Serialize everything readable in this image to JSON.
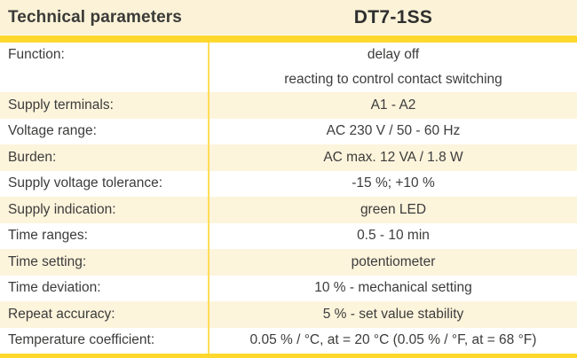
{
  "header": {
    "title": "Technical parameters",
    "model": "DT7-1SS"
  },
  "colors": {
    "accent_yellow": "#FFD82E",
    "header_cream": "#FBF2D7",
    "row_cream": "#FDF4DC",
    "divider_yellow": "#FFDD55",
    "text": "#3C3C3B"
  },
  "table": {
    "rows": [
      {
        "label": "Function:",
        "value": "delay off",
        "value2": "reacting to control contact switching"
      },
      {
        "label": "Supply terminals:",
        "value": "A1 - A2"
      },
      {
        "label": "Voltage range:",
        "value": "AC 230 V / 50 - 60 Hz"
      },
      {
        "label": "Burden:",
        "value": "AC max. 12 VA / 1.8 W"
      },
      {
        "label": "Supply voltage tolerance:",
        "value": "-15 %; +10 %"
      },
      {
        "label": "Supply indication:",
        "value": "green LED"
      },
      {
        "label": "Time ranges:",
        "value": "0.5 - 10 min"
      },
      {
        "label": "Time setting:",
        "value": "potentiometer"
      },
      {
        "label": "Time deviation:",
        "value": "10 % - mechanical setting"
      },
      {
        "label": "Repeat accuracy:",
        "value": "5 % - set value stability"
      },
      {
        "label": "Temperature coefficient:",
        "value": "0.05 % / °C, at = 20 °C (0.05 % / °F, at = 68 °F)"
      }
    ]
  }
}
